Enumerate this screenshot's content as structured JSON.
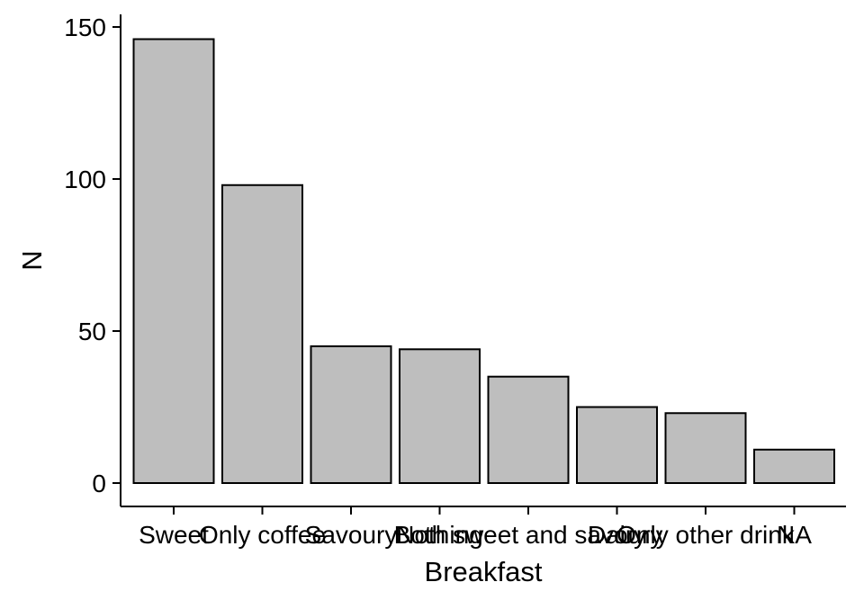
{
  "chart_data": {
    "type": "bar",
    "title": "",
    "xlabel": "Breakfast",
    "ylabel": "N",
    "categories": [
      "Sweet",
      "Only coffee",
      "Savoury",
      "Nothing",
      "Both sweet and savoury",
      "Dairy",
      "Only other drink",
      "NA"
    ],
    "values": [
      146,
      98,
      45,
      44,
      35,
      25,
      23,
      11
    ],
    "ylim": [
      0,
      150
    ],
    "yticks": [
      0,
      50,
      100,
      150
    ],
    "grid": false,
    "legend": "none",
    "colors": {
      "bar_fill": "#bebebe",
      "bar_stroke": "#000000",
      "axis": "#000000",
      "background": "#ffffff"
    }
  }
}
